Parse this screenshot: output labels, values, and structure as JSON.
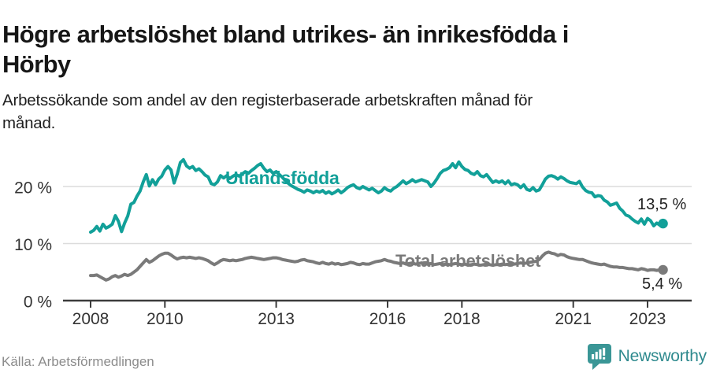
{
  "chart_data": {
    "type": "line",
    "title": "Högre arbetslöshet bland utrikes- än inrikesfödda i\nHörby",
    "subtitle": "Arbetssökande som andel av den registerbaserade arbetskraften månad för\nmånad.",
    "unit": "%",
    "grid": "horizontal-only",
    "legend_position": "inline-labels-on-lines",
    "xlim": [
      2007.3,
      2024.2
    ],
    "ylim": [
      0,
      26
    ],
    "x_tick_years": [
      2008,
      2010,
      2013,
      2016,
      2018,
      2021,
      2023
    ],
    "x_tick_labels": [
      "2008",
      "2010",
      "2013",
      "2016",
      "2018",
      "2021",
      "2023"
    ],
    "y_ticks": [
      0,
      10,
      20
    ],
    "y_tick_labels": [
      "0 %",
      "10 %",
      "20 %"
    ],
    "series": [
      {
        "name": "Utlandsfödda",
        "color": "#12a099",
        "end_label": "13,5 %",
        "end_value": 13.5,
        "start_year": 2008,
        "points_per_year": 12,
        "values": [
          12.0,
          12.3,
          13.0,
          12.2,
          13.4,
          12.7,
          13.0,
          13.4,
          14.9,
          13.9,
          12.1,
          13.6,
          14.8,
          16.9,
          17.2,
          18.3,
          19.2,
          20.8,
          22.1,
          20.1,
          21.2,
          20.3,
          21.3,
          21.8,
          22.9,
          23.5,
          22.9,
          20.6,
          22.2,
          24.2,
          24.7,
          23.6,
          23.2,
          23.5,
          22.8,
          23.1,
          22.6,
          22.0,
          21.7,
          20.5,
          20.3,
          20.8,
          21.9,
          21.5,
          21.9,
          21.4,
          21.8,
          22.1,
          21.8,
          22.2,
          22.6,
          22.3,
          22.8,
          23.2,
          23.7,
          24.0,
          23.2,
          22.6,
          22.9,
          22.3,
          22.6,
          22.1,
          21.6,
          21.0,
          20.5,
          20.1,
          19.8,
          19.5,
          19.3,
          19.0,
          19.4,
          19.2,
          18.9,
          19.2,
          19.0,
          19.3,
          18.8,
          19.1,
          18.7,
          19.0,
          19.4,
          18.9,
          19.3,
          19.8,
          20.1,
          20.3,
          19.8,
          19.6,
          20.0,
          19.7,
          19.4,
          19.7,
          19.3,
          18.9,
          19.2,
          19.8,
          19.4,
          19.2,
          19.7,
          20.0,
          20.5,
          21.0,
          20.5,
          20.8,
          21.2,
          20.8,
          21.0,
          21.2,
          21.0,
          20.8,
          20.0,
          20.6,
          21.4,
          22.3,
          22.8,
          23.0,
          23.3,
          24.0,
          23.3,
          24.3,
          23.5,
          23.0,
          22.8,
          22.3,
          22.1,
          22.6,
          21.9,
          21.7,
          22.1,
          21.4,
          20.7,
          21.0,
          20.7,
          21.0,
          20.5,
          21.0,
          20.3,
          20.5,
          20.3,
          19.8,
          20.3,
          19.5,
          19.3,
          19.8,
          19.2,
          19.4,
          20.3,
          21.3,
          21.8,
          21.9,
          21.7,
          21.3,
          21.7,
          21.4,
          21.0,
          20.7,
          20.6,
          20.5,
          20.9,
          19.9,
          19.3,
          19.0,
          18.9,
          18.2,
          18.4,
          18.3,
          17.6,
          17.3,
          16.7,
          16.9,
          17.1,
          16.2,
          15.7,
          15.0,
          14.8,
          14.3,
          13.9,
          13.6,
          14.3,
          13.4,
          14.4,
          14.0,
          13.1,
          13.6,
          13.2,
          13.5
        ]
      },
      {
        "name": "Total arbetslöshet",
        "color": "#7a7a7a",
        "end_label": "5,4 %",
        "end_value": 5.4,
        "start_year": 2008,
        "points_per_year": 12,
        "values": [
          4.4,
          4.4,
          4.5,
          4.2,
          3.9,
          3.6,
          3.8,
          4.2,
          4.4,
          4.1,
          4.3,
          4.6,
          4.4,
          4.6,
          5.0,
          5.4,
          6.0,
          6.6,
          7.2,
          6.7,
          7.0,
          7.4,
          7.8,
          8.1,
          8.3,
          8.3,
          8.0,
          7.6,
          7.3,
          7.5,
          7.6,
          7.5,
          7.6,
          7.5,
          7.4,
          7.5,
          7.4,
          7.2,
          7.0,
          6.6,
          6.3,
          6.6,
          7.0,
          7.2,
          7.1,
          7.0,
          7.1,
          7.0,
          7.1,
          7.2,
          7.4,
          7.5,
          7.6,
          7.5,
          7.4,
          7.3,
          7.2,
          7.3,
          7.4,
          7.5,
          7.5,
          7.4,
          7.2,
          7.1,
          7.0,
          6.9,
          6.8,
          6.9,
          7.1,
          7.2,
          7.0,
          6.9,
          6.8,
          6.6,
          6.5,
          6.7,
          6.5,
          6.4,
          6.6,
          6.4,
          6.5,
          6.3,
          6.4,
          6.5,
          6.7,
          6.6,
          6.4,
          6.3,
          6.5,
          6.4,
          6.4,
          6.6,
          6.8,
          6.9,
          7.0,
          7.2,
          7.0,
          6.9,
          6.7,
          6.6,
          6.5,
          6.6,
          6.4,
          6.5,
          6.6,
          6.4,
          6.5,
          6.6,
          6.5,
          6.4,
          6.5,
          6.3,
          6.4,
          6.5,
          6.3,
          6.4,
          6.3,
          6.4,
          6.5,
          6.4,
          6.3,
          6.4,
          6.2,
          6.3,
          6.4,
          6.3,
          6.2,
          6.3,
          6.4,
          6.3,
          6.2,
          6.3,
          6.3,
          6.4,
          6.3,
          6.4,
          6.5,
          6.4,
          6.5,
          6.6,
          6.5,
          6.6,
          6.7,
          6.8,
          6.9,
          7.2,
          7.8,
          8.3,
          8.5,
          8.3,
          8.2,
          7.9,
          8.1,
          8.0,
          7.7,
          7.5,
          7.4,
          7.3,
          7.2,
          7.2,
          7.0,
          6.8,
          6.6,
          6.5,
          6.4,
          6.3,
          6.4,
          6.2,
          6.0,
          5.9,
          5.9,
          5.8,
          5.8,
          5.7,
          5.6,
          5.6,
          5.5,
          5.4,
          5.6,
          5.5,
          5.3,
          5.4,
          5.4,
          5.3,
          5.4,
          5.4
        ]
      }
    ]
  },
  "footer": {
    "source": "Källa: Arbetsförmedlingen",
    "brand": "Newsworthy"
  },
  "colors": {
    "accent_teal": "#12a099",
    "line_gray": "#7a7a7a",
    "grid": "#dcdcdc",
    "axis": "#3c3c3c",
    "text_axis": "#333333",
    "text_dark": "#222222",
    "text_source": "#8c8c8c",
    "brand_teal": "#3a9696"
  }
}
